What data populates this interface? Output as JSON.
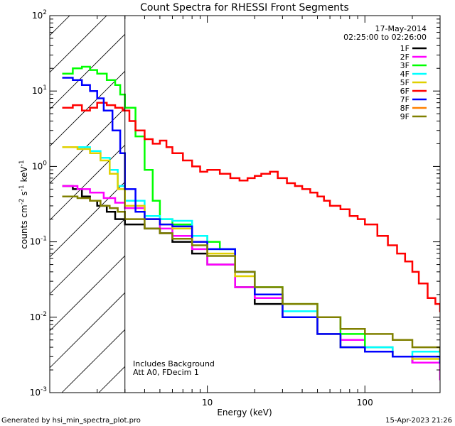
{
  "chart_data": {
    "type": "line",
    "title": "Count Spectra for RHESSI Front Segments",
    "xlabel": "Energy (keV)",
    "ylabel_parts": [
      "counts cm",
      "-2",
      " s",
      "-1",
      " keV",
      "-1"
    ],
    "x_scale": "log",
    "y_scale": "log",
    "xlim": [
      1,
      300
    ],
    "ylim": [
      0.001,
      100
    ],
    "x_ticks": [
      {
        "value": 10,
        "label": "10"
      },
      {
        "value": 100,
        "label": "100"
      }
    ],
    "y_ticks": [
      {
        "value": 0.001,
        "base": "10",
        "exp": "-3"
      },
      {
        "value": 0.01,
        "base": "10",
        "exp": "-2"
      },
      {
        "value": 0.1,
        "base": "10",
        "exp": "-1"
      },
      {
        "value": 1,
        "base": "10",
        "exp": "0"
      },
      {
        "value": 10,
        "base": "10",
        "exp": "1"
      },
      {
        "value": 100,
        "base": "10",
        "exp": "2"
      }
    ],
    "date_label": "17-May-2014",
    "time_range_label": "02:25:00 to 02:26:00",
    "shaded_region_max_energy": 3,
    "annotations": [
      "Includes Background",
      "Att A0, FDecim 1"
    ],
    "series": [
      {
        "name": "1F",
        "color": "#000000",
        "points": [
          [
            1.2,
            0.55
          ],
          [
            1.4,
            0.5
          ],
          [
            1.6,
            0.4
          ],
          [
            1.8,
            0.35
          ],
          [
            2.0,
            0.3
          ],
          [
            2.3,
            0.25
          ],
          [
            2.6,
            0.2
          ],
          [
            3.0,
            0.17
          ],
          [
            4,
            0.15
          ],
          [
            5,
            0.13
          ],
          [
            6,
            0.1
          ],
          [
            8,
            0.07
          ],
          [
            10,
            0.05
          ],
          [
            15,
            0.025
          ],
          [
            20,
            0.015
          ],
          [
            30,
            0.01
          ],
          [
            50,
            0.006
          ],
          [
            70,
            0.004
          ],
          [
            100,
            0.0035
          ],
          [
            150,
            0.003
          ],
          [
            200,
            0.0025
          ],
          [
            300,
            0.0022
          ]
        ]
      },
      {
        "name": "2F",
        "color": "#ff00ff",
        "points": [
          [
            1.2,
            0.55
          ],
          [
            1.5,
            0.5
          ],
          [
            1.8,
            0.45
          ],
          [
            2.2,
            0.38
          ],
          [
            2.6,
            0.33
          ],
          [
            3.0,
            0.28
          ],
          [
            4,
            0.2
          ],
          [
            5,
            0.15
          ],
          [
            6,
            0.12
          ],
          [
            8,
            0.08
          ],
          [
            10,
            0.05
          ],
          [
            15,
            0.025
          ],
          [
            20,
            0.018
          ],
          [
            30,
            0.01
          ],
          [
            50,
            0.006
          ],
          [
            70,
            0.005
          ],
          [
            100,
            0.004
          ],
          [
            150,
            0.003
          ],
          [
            200,
            0.0025
          ],
          [
            300,
            0.0015
          ]
        ]
      },
      {
        "name": "3F",
        "color": "#00ff00",
        "points": [
          [
            1.2,
            17
          ],
          [
            1.4,
            20
          ],
          [
            1.6,
            21
          ],
          [
            1.8,
            19
          ],
          [
            2.0,
            17
          ],
          [
            2.3,
            14
          ],
          [
            2.6,
            12
          ],
          [
            2.8,
            9
          ],
          [
            3.0,
            6
          ],
          [
            3.5,
            2.5
          ],
          [
            4,
            0.9
          ],
          [
            4.5,
            0.35
          ],
          [
            5,
            0.2
          ],
          [
            6,
            0.17
          ],
          [
            8,
            0.12
          ],
          [
            10,
            0.1
          ],
          [
            12,
            0.08
          ],
          [
            15,
            0.04
          ],
          [
            20,
            0.025
          ],
          [
            30,
            0.015
          ],
          [
            50,
            0.01
          ],
          [
            70,
            0.006
          ],
          [
            100,
            0.004
          ],
          [
            150,
            0.003
          ],
          [
            200,
            0.003
          ],
          [
            300,
            0.0025
          ]
        ]
      },
      {
        "name": "4F",
        "color": "#00ffff",
        "points": [
          [
            1.2,
            1.8
          ],
          [
            1.5,
            1.8
          ],
          [
            1.8,
            1.6
          ],
          [
            2.1,
            1.3
          ],
          [
            2.4,
            0.9
          ],
          [
            2.7,
            0.55
          ],
          [
            3.0,
            0.35
          ],
          [
            4,
            0.22
          ],
          [
            5,
            0.2
          ],
          [
            6,
            0.19
          ],
          [
            8,
            0.12
          ],
          [
            10,
            0.08
          ],
          [
            15,
            0.04
          ],
          [
            20,
            0.02
          ],
          [
            30,
            0.012
          ],
          [
            50,
            0.006
          ],
          [
            70,
            0.004
          ],
          [
            100,
            0.004
          ],
          [
            150,
            0.003
          ],
          [
            200,
            0.0035
          ],
          [
            300,
            0.0025
          ]
        ]
      },
      {
        "name": "5F",
        "color": "#e0d000",
        "points": [
          [
            1.2,
            1.8
          ],
          [
            1.5,
            1.7
          ],
          [
            1.8,
            1.5
          ],
          [
            2.1,
            1.2
          ],
          [
            2.4,
            0.8
          ],
          [
            2.7,
            0.5
          ],
          [
            3.0,
            0.3
          ],
          [
            4,
            0.2
          ],
          [
            5,
            0.17
          ],
          [
            6,
            0.15
          ],
          [
            8,
            0.1
          ],
          [
            10,
            0.07
          ],
          [
            15,
            0.035
          ],
          [
            20,
            0.02
          ],
          [
            30,
            0.01
          ],
          [
            50,
            0.006
          ],
          [
            70,
            0.004
          ],
          [
            100,
            0.0035
          ],
          [
            150,
            0.003
          ],
          [
            200,
            0.0028
          ],
          [
            300,
            0.0025
          ]
        ]
      },
      {
        "name": "6F",
        "color": "#ff0000",
        "points": [
          [
            1.2,
            6
          ],
          [
            1.4,
            6.5
          ],
          [
            1.6,
            5.5
          ],
          [
            1.8,
            6
          ],
          [
            2.0,
            7
          ],
          [
            2.3,
            6.5
          ],
          [
            2.6,
            6
          ],
          [
            2.9,
            5.5
          ],
          [
            3.2,
            4
          ],
          [
            3.5,
            3
          ],
          [
            4,
            2.3
          ],
          [
            4.5,
            2.0
          ],
          [
            5,
            2.2
          ],
          [
            5.5,
            1.8
          ],
          [
            6,
            1.5
          ],
          [
            7,
            1.2
          ],
          [
            8,
            1.0
          ],
          [
            9,
            0.85
          ],
          [
            10,
            0.9
          ],
          [
            12,
            0.8
          ],
          [
            14,
            0.7
          ],
          [
            16,
            0.65
          ],
          [
            18,
            0.7
          ],
          [
            20,
            0.75
          ],
          [
            22,
            0.8
          ],
          [
            25,
            0.85
          ],
          [
            28,
            0.7
          ],
          [
            32,
            0.6
          ],
          [
            36,
            0.55
          ],
          [
            40,
            0.5
          ],
          [
            45,
            0.45
          ],
          [
            50,
            0.4
          ],
          [
            55,
            0.35
          ],
          [
            60,
            0.3
          ],
          [
            70,
            0.27
          ],
          [
            80,
            0.22
          ],
          [
            90,
            0.2
          ],
          [
            100,
            0.17
          ],
          [
            120,
            0.12
          ],
          [
            140,
            0.09
          ],
          [
            160,
            0.07
          ],
          [
            180,
            0.055
          ],
          [
            200,
            0.04
          ],
          [
            220,
            0.028
          ],
          [
            250,
            0.018
          ],
          [
            280,
            0.015
          ],
          [
            300,
            0.012
          ]
        ]
      },
      {
        "name": "7F",
        "color": "#0000ff",
        "points": [
          [
            1.2,
            15
          ],
          [
            1.4,
            14
          ],
          [
            1.6,
            12
          ],
          [
            1.8,
            10
          ],
          [
            2.0,
            8
          ],
          [
            2.2,
            5.5
          ],
          [
            2.5,
            3
          ],
          [
            2.8,
            1.5
          ],
          [
            3.0,
            0.5
          ],
          [
            3.5,
            0.25
          ],
          [
            4,
            0.2
          ],
          [
            5,
            0.17
          ],
          [
            6,
            0.16
          ],
          [
            8,
            0.1
          ],
          [
            10,
            0.08
          ],
          [
            15,
            0.04
          ],
          [
            20,
            0.02
          ],
          [
            30,
            0.01
          ],
          [
            50,
            0.006
          ],
          [
            70,
            0.004
          ],
          [
            100,
            0.0035
          ],
          [
            150,
            0.003
          ],
          [
            200,
            0.003
          ],
          [
            300,
            0.0025
          ]
        ]
      },
      {
        "name": "8F",
        "color": "#ff8000",
        "points": []
      },
      {
        "name": "9F",
        "color": "#808000",
        "points": [
          [
            1.2,
            0.4
          ],
          [
            1.5,
            0.38
          ],
          [
            1.8,
            0.35
          ],
          [
            2.1,
            0.3
          ],
          [
            2.4,
            0.28
          ],
          [
            2.7,
            0.25
          ],
          [
            3.0,
            0.2
          ],
          [
            4,
            0.15
          ],
          [
            5,
            0.13
          ],
          [
            6,
            0.11
          ],
          [
            8,
            0.09
          ],
          [
            10,
            0.065
          ],
          [
            15,
            0.04
          ],
          [
            20,
            0.025
          ],
          [
            30,
            0.015
          ],
          [
            50,
            0.01
          ],
          [
            70,
            0.007
          ],
          [
            100,
            0.006
          ],
          [
            150,
            0.005
          ],
          [
            200,
            0.004
          ],
          [
            300,
            0.0035
          ]
        ]
      }
    ]
  },
  "footer": {
    "generated_by": "Generated by hsi_min_spectra_plot.pro",
    "timestamp": "15-Apr-2023 21:26"
  }
}
